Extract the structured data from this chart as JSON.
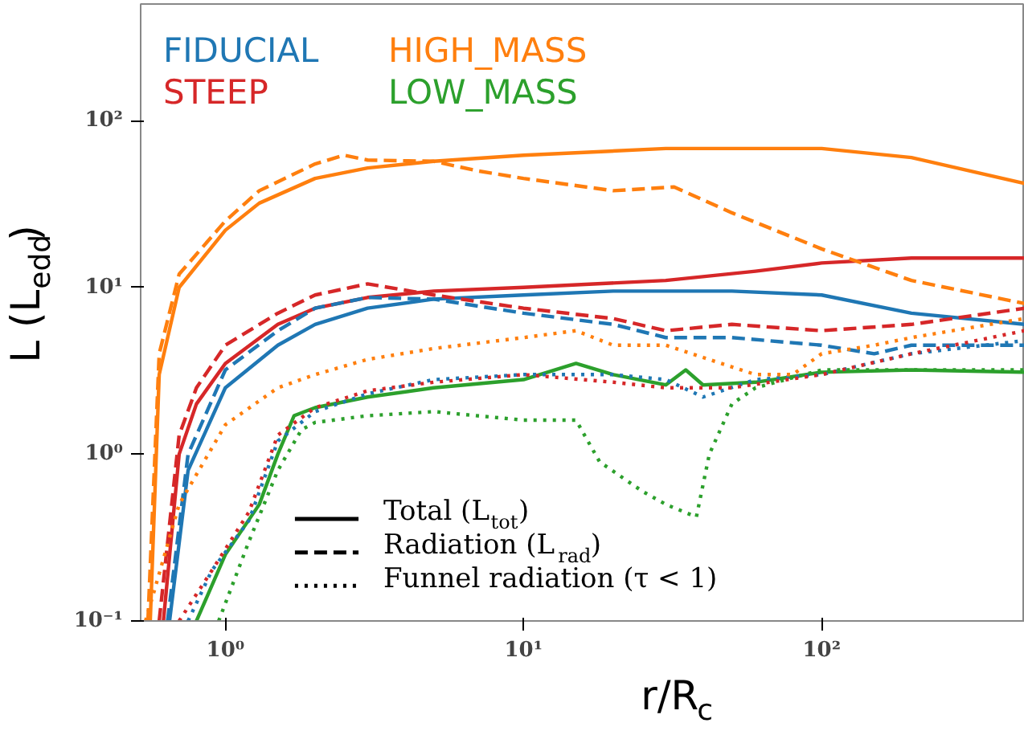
{
  "chart_data": {
    "type": "line",
    "xlabel": "r/R$_{c}$",
    "ylabel": "L (L$_{edd}$)",
    "log": "xy",
    "grid": false,
    "legend": "top left",
    "annotations": [
      "Total (L$_{tot}$)",
      "Radiation  (L$_{rad}$)",
      "Funnel radiation  (τ < 1)"
    ],
    "xlim": [
      0.52,
      480
    ],
    "ylim": [
      0.1,
      500
    ],
    "xticks": [
      {
        "value": 1,
        "label": "10⁰"
      },
      {
        "value": 10,
        "label": "10¹"
      },
      {
        "value": 100,
        "label": "10²"
      }
    ],
    "yticks": [
      {
        "value": 0.1,
        "label": "10⁻¹"
      },
      {
        "value": 1,
        "label": "10⁰"
      },
      {
        "value": 10,
        "label": "10¹"
      },
      {
        "value": 100,
        "label": "10²"
      }
    ],
    "series": [
      {
        "name": "FIDUCIAL",
        "color": "#1f77b4",
        "line_style": "solid",
        "x": [
          0.65,
          0.75,
          1,
          1.5,
          2,
          3,
          5,
          10,
          20,
          50,
          100,
          200,
          480
        ],
        "values": [
          0.1,
          0.8,
          2.5,
          4.5,
          6,
          7.5,
          8.5,
          9,
          9.5,
          9.5,
          9,
          7,
          6
        ]
      },
      {
        "name": "STEEP",
        "color": "#d62728",
        "line_style": "solid",
        "x": [
          0.62,
          0.7,
          0.8,
          1,
          1.5,
          2,
          3,
          5,
          10,
          30,
          60,
          100,
          200,
          480
        ],
        "values": [
          0.1,
          1,
          2,
          3.5,
          6,
          7.5,
          8.7,
          9.5,
          10,
          11,
          12.5,
          14,
          15,
          15
        ]
      },
      {
        "name": "HIGH_MASS",
        "color": "#ff7f0e",
        "line_style": "solid",
        "x": [
          0.56,
          0.6,
          0.7,
          1,
          1.3,
          2,
          3,
          5,
          10,
          30,
          100,
          200,
          480
        ],
        "values": [
          0.1,
          3,
          10,
          22,
          32,
          45,
          52,
          57,
          62,
          68,
          68,
          60,
          42
        ]
      },
      {
        "name": "LOW_MASS",
        "color": "#2ca02c",
        "line_style": "solid",
        "x": [
          0.8,
          1,
          1.3,
          1.5,
          1.7,
          2,
          3,
          5,
          10,
          15,
          20,
          30,
          35,
          40,
          60,
          100,
          200,
          480
        ],
        "values": [
          0.1,
          0.25,
          0.5,
          1,
          1.7,
          1.9,
          2.2,
          2.5,
          2.8,
          3.5,
          3,
          2.6,
          3.2,
          2.6,
          2.7,
          3.1,
          3.2,
          3.1
        ]
      },
      {
        "color": "#1f77b4",
        "line_style": "dashed",
        "x": [
          0.64,
          0.75,
          1,
          1.5,
          2,
          3,
          5,
          10,
          20,
          30,
          50,
          100,
          150,
          200,
          480
        ],
        "values": [
          0.1,
          1,
          3.2,
          5.5,
          7.5,
          8.7,
          8.5,
          7,
          6,
          5,
          5,
          4.5,
          4,
          4.5,
          4.5
        ]
      },
      {
        "color": "#d62728",
        "line_style": "dashed",
        "x": [
          0.6,
          0.7,
          0.8,
          1,
          1.5,
          2,
          3,
          5,
          10,
          20,
          30,
          50,
          100,
          200,
          480
        ],
        "values": [
          0.1,
          1.3,
          2.5,
          4.5,
          7,
          9,
          10.5,
          9,
          7.5,
          6.5,
          5.5,
          6,
          5.5,
          6,
          7.5
        ]
      },
      {
        "color": "#ff7f0e",
        "line_style": "dashed",
        "x": [
          0.55,
          0.6,
          0.7,
          1,
          1.3,
          2,
          2.5,
          3,
          5,
          7,
          10,
          20,
          32,
          50,
          100,
          200,
          480
        ],
        "values": [
          0.1,
          4,
          12,
          25,
          38,
          55,
          62,
          58,
          57,
          50,
          45,
          38,
          40,
          28,
          17,
          11,
          8
        ]
      },
      {
        "color": "#1f77b4",
        "line_style": "dotted",
        "x": [
          0.75,
          0.9,
          1.2,
          1.5,
          2,
          3,
          5,
          10,
          20,
          30,
          40,
          60,
          100,
          200,
          480
        ],
        "values": [
          0.1,
          0.2,
          0.4,
          1.2,
          1.8,
          2.3,
          2.8,
          3,
          3,
          2.8,
          2.2,
          2.8,
          3,
          4,
          4.8
        ]
      },
      {
        "color": "#d62728",
        "line_style": "dotted",
        "x": [
          0.7,
          0.9,
          1.2,
          1.5,
          2,
          3,
          5,
          10,
          20,
          30,
          50,
          100,
          200,
          480
        ],
        "values": [
          0.1,
          0.2,
          0.45,
          1.3,
          1.9,
          2.4,
          2.7,
          3,
          2.7,
          2.5,
          2.5,
          3,
          4,
          5.5
        ]
      },
      {
        "color": "#ff7f0e",
        "line_style": "dotted",
        "x": [
          0.54,
          0.7,
          1,
          1.5,
          2,
          3,
          5,
          10,
          15,
          20,
          30,
          40,
          60,
          80,
          100,
          150,
          200,
          480
        ],
        "values": [
          0.1,
          0.5,
          1.5,
          2.5,
          3,
          3.7,
          4.3,
          5,
          5.5,
          4.5,
          4.5,
          3.8,
          3,
          3,
          4,
          4.5,
          5,
          6.5
        ]
      },
      {
        "color": "#2ca02c",
        "line_style": "dotted",
        "x": [
          0.95,
          1.2,
          1.5,
          1.8,
          2,
          3,
          5,
          10,
          15,
          18,
          25,
          30,
          38,
          42,
          50,
          60,
          100,
          200,
          480
        ],
        "values": [
          0.1,
          0.3,
          0.8,
          1.4,
          1.55,
          1.7,
          1.8,
          1.6,
          1.6,
          0.9,
          0.6,
          0.5,
          0.42,
          1,
          2,
          2.5,
          3.2,
          3.2,
          3.2
        ]
      }
    ]
  }
}
